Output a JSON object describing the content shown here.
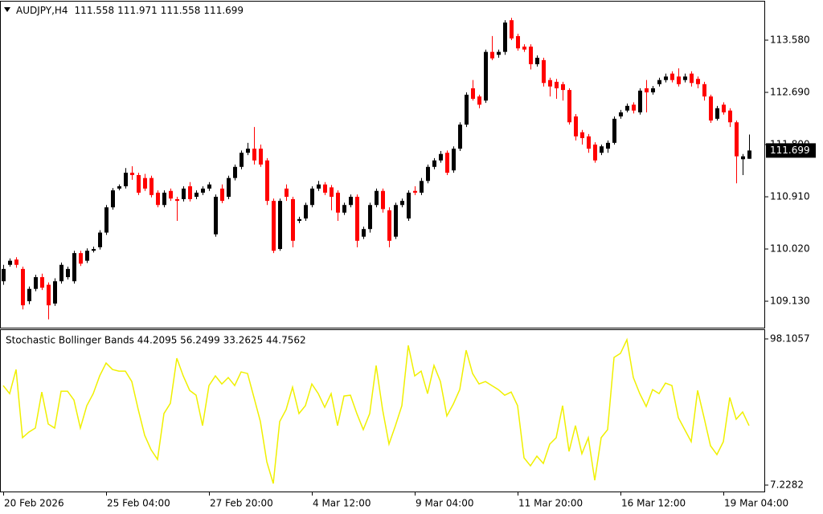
{
  "chart_data": [
    {
      "type": "candlestick",
      "title": "AUDJPY,H4",
      "categories": [
        "20 Feb 2026",
        null,
        null,
        null,
        null,
        null,
        null,
        null,
        null,
        null,
        null,
        null,
        null,
        null,
        null,
        null,
        "25 Feb 04:00",
        null,
        null,
        null,
        null,
        null,
        null,
        null,
        null,
        null,
        null,
        null,
        null,
        null,
        null,
        null,
        "27 Feb 20:00",
        null,
        null,
        null,
        null,
        null,
        null,
        null,
        null,
        null,
        null,
        null,
        null,
        null,
        null,
        null,
        "4 Mar 12:00",
        null,
        null,
        null,
        null,
        null,
        null,
        null,
        null,
        null,
        null,
        null,
        null,
        null,
        null,
        null,
        "9 Mar 04:00",
        null,
        null,
        null,
        null,
        null,
        null,
        null,
        null,
        null,
        null,
        null,
        null,
        null,
        null,
        null,
        "11 Mar 20:00",
        null,
        null,
        null,
        null,
        null,
        null,
        null,
        null,
        null,
        null,
        null,
        null,
        null,
        null,
        null,
        "16 Mar 12:00",
        null,
        null,
        null,
        null,
        null,
        null,
        null,
        null,
        null,
        null,
        null,
        null,
        null,
        null,
        null,
        "19 Mar 04:00",
        null,
        null,
        null,
        null
      ],
      "open": [
        109.47,
        109.75,
        109.84,
        109.68,
        109.13,
        109.34,
        109.54,
        109.41,
        109.09,
        109.47,
        109.54,
        109.47,
        109.95,
        109.82,
        109.99,
        110.05,
        110.3,
        110.73,
        111.05,
        111.09,
        111.32,
        111.28,
        111.23,
        111.23,
        110.98,
        110.77,
        111.01,
        110.87,
        110.87,
        111.09,
        110.91,
        110.98,
        111.05,
        110.27,
        111.05,
        110.91,
        111.23,
        111.42,
        111.66,
        111.73,
        111.73,
        111.53,
        110.84,
        110.02,
        111.05,
        110.87,
        110.5,
        110.54,
        110.77,
        111.05,
        111.12,
        111.07,
        110.98,
        110.64,
        110.77,
        110.91,
        110.23,
        110.36,
        110.77,
        111.01,
        110.68,
        110.23,
        110.77,
        110.54,
        111.01,
        110.98,
        111.18,
        111.42,
        111.53,
        111.66,
        111.36,
        111.73,
        112.14,
        112.76,
        112.62,
        112.55,
        113.38,
        113.33,
        113.38,
        113.92,
        113.65,
        113.47,
        113.47,
        113.17,
        113.24,
        112.9,
        112.87,
        112.83,
        112.73,
        112.28,
        112.01,
        111.94,
        111.8,
        111.66,
        111.73,
        111.83,
        112.28,
        112.38,
        112.48,
        112.35,
        112.76,
        112.69,
        112.83,
        112.9,
        113.01,
        112.96,
        112.9,
        113.01,
        112.92,
        112.83,
        112.62,
        112.24,
        112.48,
        112.38,
        112.18,
        111.55,
        111.558
      ],
      "high": [
        109.75,
        109.86,
        109.88,
        109.72,
        109.38,
        109.58,
        109.6,
        109.45,
        109.52,
        109.79,
        109.72,
        109.99,
        109.99,
        110.03,
        110.06,
        110.34,
        110.77,
        111.06,
        111.12,
        111.4,
        111.43,
        111.32,
        111.3,
        111.27,
        111.02,
        111.02,
        111.05,
        110.91,
        111.09,
        111.16,
        111.02,
        111.09,
        111.16,
        110.95,
        111.12,
        111.27,
        111.46,
        111.7,
        111.83,
        112.1,
        111.8,
        111.57,
        110.88,
        110.88,
        111.12,
        110.91,
        110.57,
        110.81,
        111.09,
        111.18,
        111.16,
        111.11,
        111.02,
        110.81,
        110.95,
        110.95,
        110.4,
        110.81,
        111.05,
        111.05,
        110.73,
        110.81,
        110.88,
        111.02,
        111.09,
        111.23,
        111.46,
        111.57,
        111.69,
        111.7,
        111.77,
        112.18,
        112.69,
        112.9,
        112.65,
        113.42,
        113.65,
        113.42,
        113.92,
        113.96,
        113.69,
        113.51,
        113.51,
        113.32,
        113.28,
        112.94,
        112.92,
        112.87,
        112.76,
        112.32,
        112.05,
        111.98,
        111.84,
        111.8,
        111.87,
        112.28,
        112.39,
        112.5,
        112.52,
        112.76,
        112.9,
        112.8,
        112.94,
        113.01,
        113.05,
        113.1,
        113.01,
        113.05,
        112.96,
        112.87,
        112.65,
        112.46,
        112.52,
        112.42,
        112.21,
        111.64,
        111.971
      ],
      "low": [
        109.41,
        109.72,
        109.7,
        108.99,
        109.08,
        109.3,
        109.32,
        108.82,
        109.05,
        109.43,
        109.5,
        109.43,
        109.73,
        109.78,
        109.96,
        110.01,
        110.26,
        110.69,
        111.02,
        111.05,
        111.2,
        110.94,
        111.01,
        110.9,
        110.73,
        110.73,
        110.84,
        110.5,
        110.83,
        110.83,
        110.87,
        110.94,
        111.01,
        110.23,
        110.8,
        110.87,
        111.19,
        111.38,
        111.62,
        111.46,
        111.42,
        110.77,
        109.95,
        109.99,
        110.84,
        110.05,
        110.46,
        110.5,
        110.73,
        111.01,
        110.94,
        110.68,
        110.5,
        110.6,
        110.73,
        110.05,
        110.19,
        110.3,
        110.73,
        110.64,
        110.05,
        110.19,
        110.73,
        110.5,
        110.94,
        110.94,
        111.14,
        111.38,
        111.49,
        111.28,
        111.32,
        111.69,
        112.1,
        112.55,
        112.42,
        112.51,
        113.24,
        113.28,
        113.33,
        113.58,
        113.4,
        113.38,
        113.08,
        113.13,
        112.79,
        112.62,
        112.58,
        112.55,
        112.14,
        111.87,
        111.8,
        111.66,
        111.49,
        111.62,
        111.66,
        111.8,
        112.24,
        112.35,
        112.33,
        112.31,
        112.35,
        112.65,
        112.79,
        112.86,
        112.86,
        112.79,
        112.86,
        112.79,
        112.76,
        112.55,
        112.17,
        112.21,
        112.31,
        112.1,
        111.14,
        111.28,
        111.558
      ],
      "close": [
        109.68,
        109.82,
        109.75,
        109.06,
        109.34,
        109.54,
        109.36,
        109.06,
        109.47,
        109.75,
        109.68,
        109.95,
        109.77,
        109.99,
        110.02,
        110.3,
        110.73,
        111.02,
        111.09,
        111.32,
        111.28,
        110.98,
        111.05,
        110.94,
        110.77,
        110.98,
        110.88,
        110.84,
        111.05,
        110.87,
        110.98,
        111.05,
        111.12,
        110.91,
        110.84,
        111.23,
        111.42,
        111.66,
        111.73,
        111.53,
        111.46,
        110.84,
        109.99,
        110.84,
        110.91,
        110.16,
        110.53,
        110.77,
        111.05,
        111.12,
        110.98,
        110.91,
        110.64,
        110.77,
        110.91,
        110.16,
        110.36,
        110.77,
        111.01,
        110.7,
        110.16,
        110.77,
        110.84,
        110.98,
        110.98,
        111.18,
        111.42,
        111.53,
        111.64,
        111.32,
        111.73,
        112.14,
        112.65,
        112.58,
        112.48,
        113.38,
        113.27,
        113.38,
        113.88,
        113.61,
        113.44,
        113.42,
        113.17,
        113.28,
        112.85,
        112.79,
        112.76,
        112.73,
        112.18,
        111.94,
        111.91,
        111.73,
        111.53,
        111.77,
        111.83,
        112.24,
        112.35,
        112.46,
        112.38,
        112.72,
        112.69,
        112.76,
        112.9,
        112.96,
        112.9,
        112.83,
        112.96,
        112.85,
        112.83,
        112.62,
        112.21,
        112.42,
        112.35,
        112.18,
        111.6,
        111.6,
        111.699
      ],
      "up_color": "#000000",
      "down_color": "#ff0000",
      "ylim": [
        108.665,
        114.251
      ],
      "yticks": [
        {
          "value": 109.13,
          "label": "109.130"
        },
        {
          "value": 110.02,
          "label": "110.020"
        },
        {
          "value": 110.91,
          "label": "110.910"
        },
        {
          "value": 111.8,
          "label": "111.800"
        },
        {
          "value": 112.69,
          "label": "112.690"
        },
        {
          "value": 113.58,
          "label": "113.580"
        }
      ]
    },
    {
      "type": "line",
      "title": "Stochastic Bollinger Bands 44.2095 56.2499 33.2625 44.7562",
      "values": [
        69.1,
        64.1,
        79.1,
        36.7,
        40.2,
        42.7,
        65.1,
        45.2,
        42.7,
        65.6,
        65.6,
        60.1,
        42.7,
        56.6,
        64.1,
        75.1,
        83.1,
        79.1,
        78.1,
        78.1,
        71.6,
        54.2,
        38.2,
        29.2,
        23.2,
        51.7,
        58.1,
        86.1,
        75.1,
        66.1,
        63.1,
        44.2,
        69.1,
        75.1,
        70.1,
        74.1,
        69.1,
        77.6,
        76.6,
        61.7,
        46.7,
        21.7,
        8.2,
        46.7,
        54.2,
        68.1,
        51.7,
        56.6,
        70.1,
        64.1,
        55.6,
        64.1,
        44.2,
        62.6,
        63.1,
        51.7,
        41.7,
        51.7,
        81.6,
        54.2,
        32.7,
        44.2,
        56.6,
        94.1,
        75.1,
        78.1,
        64.1,
        81.6,
        71.6,
        50.2,
        57.6,
        66.6,
        91.1,
        76.6,
        70.1,
        71.6,
        69.1,
        66.6,
        63.1,
        65.1,
        56.6,
        24.2,
        19.2,
        25.2,
        20.7,
        32.7,
        36.7,
        56.6,
        28.2,
        44.2,
        26.7,
        36.7,
        10.2,
        36.7,
        41.7,
        86.6,
        89.1,
        97.6,
        74.1,
        64.1,
        56.1,
        66.6,
        64.1,
        70.6,
        69.1,
        49.2,
        41.7,
        34.2,
        66.1,
        49.2,
        31.7,
        26.2,
        34.2,
        61.7,
        48.2,
        52.7,
        44.2
      ],
      "color": "#f0f000",
      "ylim": [
        3.24,
        103.6
      ],
      "yticks": [
        7.2282,
        98.1057
      ]
    }
  ]
}
